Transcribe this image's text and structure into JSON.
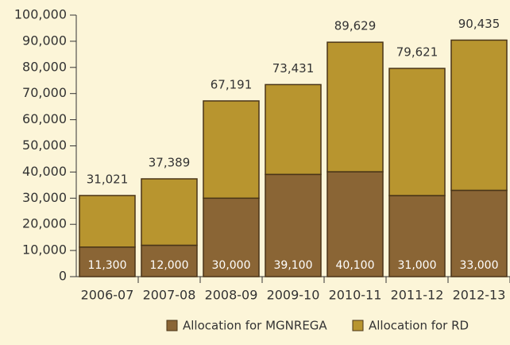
{
  "chart_data": {
    "type": "stacked_bar",
    "categories": [
      "2006-07",
      "2007-08",
      "2008-09",
      "2009-10",
      "2010-11",
      "2011-12",
      "2012-13"
    ],
    "series": [
      {
        "name": "Allocation for MGNREGA",
        "color": "#8a6535",
        "values": [
          11300,
          12000,
          30000,
          39100,
          40100,
          31000,
          33000
        ],
        "value_labels": [
          "11,300",
          "12,000",
          "30,000",
          "39,100",
          "40,100",
          "31,000",
          "33,000"
        ]
      },
      {
        "name": "Allocation for RD",
        "color": "#b8952f",
        "values": [
          19721,
          25389,
          37191,
          34331,
          49529,
          48621,
          57435
        ]
      }
    ],
    "totals": {
      "values": [
        31021,
        37389,
        67191,
        73431,
        89629,
        79621,
        90435
      ],
      "value_labels": [
        "31,021",
        "37,389",
        "67,191",
        "73,431",
        "89,629",
        "79,621",
        "90,435"
      ]
    },
    "ylim": [
      0,
      100000
    ],
    "yticks": [
      0,
      {
        "value": 10000,
        "label": "10,000"
      },
      {
        "value": 20000,
        "label": "20,000"
      },
      {
        "value": 30000,
        "label": "30,000"
      },
      {
        "value": 40000,
        "label": "40,000"
      },
      {
        "value": 50000,
        "label": "50,000"
      },
      {
        "value": 60000,
        "label": "60,000"
      },
      {
        "value": 70000,
        "label": "70,000"
      },
      {
        "value": 80000,
        "label": "80,000"
      },
      {
        "value": 90000,
        "label": "90,000"
      },
      {
        "value": 100000,
        "label": "100,000"
      }
    ],
    "legend": "bottom"
  }
}
